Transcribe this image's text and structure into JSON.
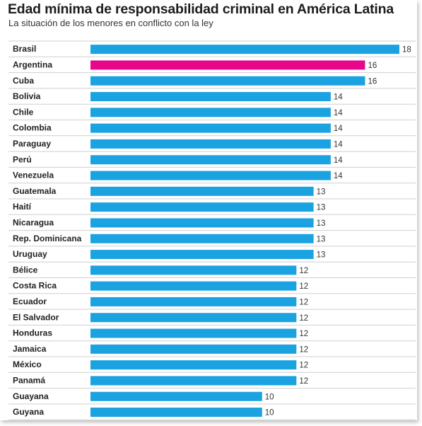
{
  "header": {
    "title": "Edad mínima de responsabilidad criminal en América Latina",
    "subtitle": "La situación de los menores en conflicto con la ley"
  },
  "colors": {
    "bar": "#1aa3e0",
    "highlight": "#e8068a",
    "divider": "#cfcfcf"
  },
  "chart_data": {
    "type": "bar",
    "orientation": "horizontal",
    "title": "Edad mínima de responsabilidad criminal en América Latina",
    "subtitle": "La situación de los menores en conflicto con la ley",
    "highlight": "Argentina",
    "categories": [
      "Brasil",
      "Argentina",
      "Cuba",
      "Bolivia",
      "Chile",
      "Colombia",
      "Paraguay",
      "Perú",
      "Venezuela",
      "Guatemala",
      "Haití",
      "Nicaragua",
      "Rep. Dominicana",
      "Uruguay",
      "Bélice",
      "Costa Rica",
      "Ecuador",
      "El Salvador",
      "Honduras",
      "Jamaica",
      "México",
      "Panamá",
      "Guayana",
      "Guyana"
    ],
    "values": [
      18,
      16,
      16,
      14,
      14,
      14,
      14,
      14,
      14,
      13,
      13,
      13,
      13,
      13,
      12,
      12,
      12,
      12,
      12,
      12,
      12,
      12,
      10,
      10
    ],
    "xlim": [
      0,
      18
    ],
    "grid": false,
    "legend": "none"
  }
}
